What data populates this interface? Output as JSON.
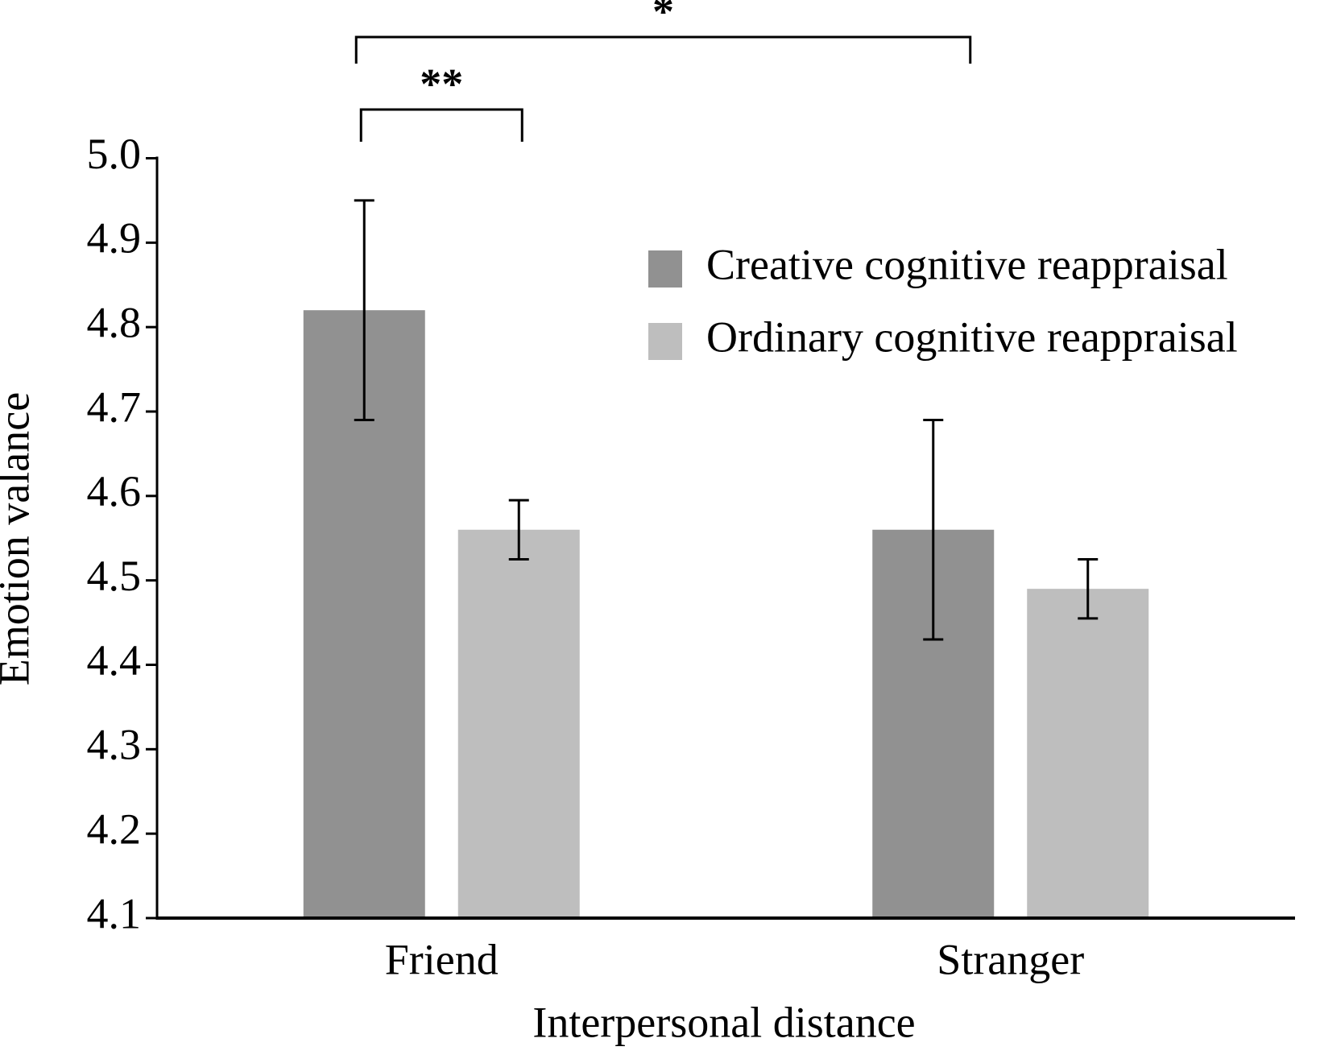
{
  "chart_data": {
    "type": "bar",
    "x_label": "Interpersonal distance",
    "y_label": "Emotion valance",
    "categories": [
      "Friend",
      "Stranger"
    ],
    "series": [
      {
        "name": "Creative cognitive reappraisal",
        "color": "#919191",
        "values": [
          4.82,
          4.56
        ],
        "errors": [
          0.13,
          0.13
        ]
      },
      {
        "name": "Ordinary cognitive reappraisal",
        "color": "#bebebe",
        "values": [
          4.56,
          4.49
        ],
        "errors": [
          0.035,
          0.035
        ]
      }
    ],
    "ylim": [
      4.1,
      5.0
    ],
    "yticks": [
      4.1,
      4.2,
      4.3,
      4.4,
      4.5,
      4.6,
      4.7,
      4.8,
      4.9,
      {
        "value": 5.0,
        "label": "5.0"
      }
    ],
    "significance": [
      "**",
      "*"
    ],
    "legend": "upper-right"
  }
}
